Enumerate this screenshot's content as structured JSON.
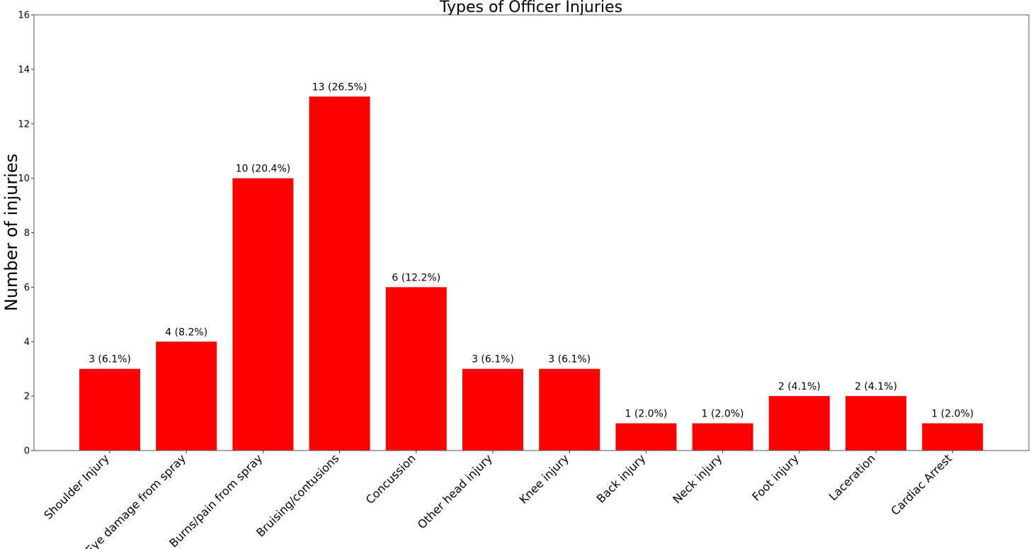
{
  "chart_data": {
    "type": "bar",
    "title": "Types of Officer Injuries",
    "xlabel": "",
    "ylabel": "Number of injuries",
    "ylim": [
      0,
      16
    ],
    "yticks": [
      0,
      2,
      4,
      6,
      8,
      10,
      12,
      14,
      16
    ],
    "grid": false,
    "bar_color": "#ff0000",
    "categories": [
      "Shoulder Injury",
      "Eye damage from spray",
      "Burns/pain from spray",
      "Bruising/contusions",
      "Concussion",
      "Other head injury",
      "Knee injury",
      "Back injury",
      "Neck injury",
      "Foot injury",
      "Laceration",
      "Cardiac Arrest"
    ],
    "values": [
      3,
      4,
      10,
      13,
      6,
      3,
      3,
      1,
      1,
      2,
      2,
      1
    ],
    "data_labels": [
      "3 (6.1%)",
      "4 (8.2%)",
      "10 (20.4%)",
      "13 (26.5%)",
      "6 (12.2%)",
      "3 (6.1%)",
      "3 (6.1%)",
      "1 (2.0%)",
      "1 (2.0%)",
      "2 (4.1%)",
      "2 (4.1%)",
      "1 (2.0%)"
    ]
  }
}
